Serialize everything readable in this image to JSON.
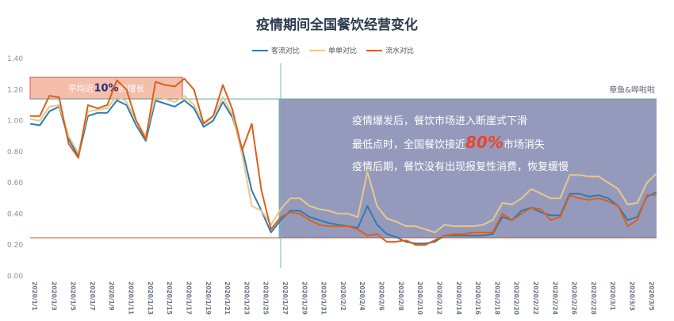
{
  "chart_data": {
    "type": "line",
    "title": "疫情期间全国餐饮经营变化",
    "author": "章鱼&哗啦啦",
    "ylim": [
      0,
      1.4
    ],
    "yticks": [
      "0.00",
      "0.20",
      "0.40",
      "0.60",
      "0.80",
      "1.00",
      "1.20",
      "1.40"
    ],
    "x_tick_labels": [
      "2020/1/1",
      "2020/1/3",
      "2020/1/5",
      "2020/1/7",
      "2020/1/9",
      "2020/1/11",
      "2020/1/13",
      "2020/1/15",
      "2020/1/17",
      "2020/1/19",
      "2020/1/21",
      "2020/1/23",
      "2020/1/25",
      "2020/1/27",
      "2020/1/29",
      "2020/1/31",
      "2020/2/2",
      "2020/2/4",
      "2020/2/6",
      "2020/2/8",
      "2020/2/10",
      "2020/2/12",
      "2020/2/14",
      "2020/2/16",
      "2020/2/18",
      "2020/2/20",
      "2020/2/22",
      "2020/2/24",
      "2020/2/26",
      "2020/2/28",
      "2020/3/1",
      "2020/3/3",
      "2020/3/5"
    ],
    "reference_lines": {
      "upper": 1.14,
      "lower": 0.245,
      "divider_index": 26
    },
    "series": [
      {
        "name": "客流对比",
        "color": "#2e7bb0",
        "values": [
          0.98,
          0.97,
          1.06,
          1.09,
          0.88,
          0.77,
          1.03,
          1.05,
          1.05,
          1.13,
          1.1,
          0.97,
          0.87,
          1.13,
          1.11,
          1.09,
          1.13,
          1.08,
          0.96,
          1.0,
          1.12,
          1.02,
          0.82,
          0.55,
          0.42,
          0.28,
          0.36,
          0.42,
          0.42,
          0.38,
          0.36,
          0.34,
          0.33,
          0.32,
          0.31,
          0.45,
          0.33,
          0.27,
          0.25,
          0.22,
          0.21,
          0.21,
          0.22,
          0.26,
          0.26,
          0.26,
          0.26,
          0.26,
          0.27,
          0.38,
          0.36,
          0.42,
          0.44,
          0.41,
          0.39,
          0.39,
          0.53,
          0.53,
          0.51,
          0.52,
          0.5,
          0.45,
          0.36,
          0.38,
          0.51,
          0.54
        ]
      },
      {
        "name": "单单对比",
        "color": "#e6c98c",
        "values": [
          1.01,
          1.0,
          1.09,
          1.1,
          0.9,
          0.79,
          1.06,
          1.07,
          1.08,
          1.16,
          1.12,
          1.0,
          0.9,
          1.16,
          1.14,
          1.12,
          1.16,
          1.1,
          0.99,
          1.03,
          1.15,
          1.04,
          0.78,
          0.45,
          0.42,
          0.33,
          0.43,
          0.5,
          0.5,
          0.45,
          0.43,
          0.42,
          0.4,
          0.4,
          0.38,
          0.67,
          0.45,
          0.37,
          0.35,
          0.32,
          0.32,
          0.3,
          0.28,
          0.33,
          0.32,
          0.32,
          0.32,
          0.33,
          0.36,
          0.47,
          0.46,
          0.5,
          0.56,
          0.53,
          0.5,
          0.5,
          0.65,
          0.65,
          0.64,
          0.64,
          0.6,
          0.56,
          0.46,
          0.47,
          0.6,
          0.66
        ]
      },
      {
        "name": "流水对比",
        "color": "#d9601e",
        "values": [
          1.03,
          1.03,
          1.16,
          1.15,
          0.85,
          0.76,
          1.1,
          1.08,
          1.1,
          1.26,
          1.2,
          1.0,
          0.88,
          1.25,
          1.23,
          1.22,
          1.27,
          1.2,
          0.98,
          1.03,
          1.23,
          1.07,
          0.81,
          0.98,
          0.55,
          0.3,
          0.38,
          0.41,
          0.4,
          0.36,
          0.33,
          0.32,
          0.32,
          0.32,
          0.3,
          0.26,
          0.27,
          0.22,
          0.22,
          0.23,
          0.2,
          0.2,
          0.23,
          0.26,
          0.27,
          0.27,
          0.28,
          0.28,
          0.28,
          0.4,
          0.36,
          0.4,
          0.44,
          0.43,
          0.36,
          0.38,
          0.52,
          0.5,
          0.49,
          0.5,
          0.48,
          0.45,
          0.32,
          0.36,
          0.52,
          0.52
        ]
      }
    ],
    "annotations": {
      "pink_box": {
        "prefix": "平均近",
        "highlight": "10%",
        "suffix": "的增长"
      },
      "blue_box": {
        "line1": "疫情爆发后，餐饮市场进入断崖式下滑",
        "line2_prefix": "最低点时，全国餐饮接近",
        "line2_highlight": "80%",
        "line2_suffix": "市场消失",
        "line3": "疫情后期，餐饮没有出现报复性消费，恢复缓慢"
      }
    },
    "colors": {
      "pink_box": "#f2b39c",
      "blue_box": "#8f95b8",
      "divider": "#6fb7b3",
      "upper_line": "#5aa7a2",
      "lower_line": "#d6602a"
    }
  }
}
